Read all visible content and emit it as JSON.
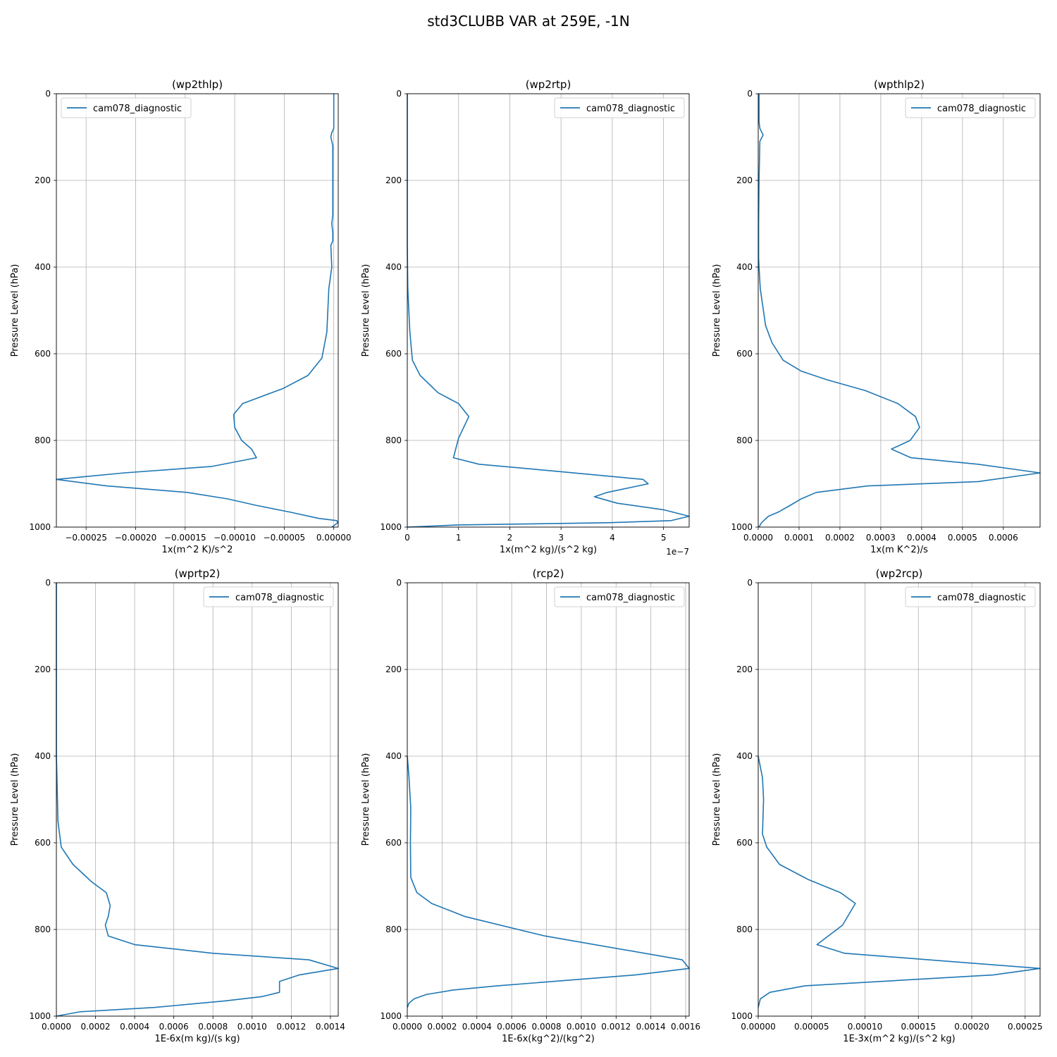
{
  "figure": {
    "title": "std3CLUBB VAR at 259E, -1N"
  },
  "chart_data": [
    {
      "type": "line",
      "title": "(wp2thlp)",
      "xlabel": "1x(m^2 K)/s^2",
      "ylabel": "Pressure Level (hPa)",
      "x_offset_label": "",
      "legend_loc": "upper left",
      "grid": true,
      "xlim": [
        -0.00028,
        4.5e-06
      ],
      "ylim": [
        1000,
        0
      ],
      "xticks": [
        -0.00025,
        -0.0002,
        -0.00015,
        -0.0001,
        -5e-05,
        0
      ],
      "xtick_labels": [
        "−0.00025",
        "−0.00020",
        "−0.00015",
        "−0.00010",
        "−0.00005",
        "0.00000"
      ],
      "yticks": [
        0,
        200,
        400,
        600,
        800,
        1000
      ],
      "ytick_labels": [
        "0",
        "200",
        "400",
        "600",
        "800",
        "1000"
      ],
      "series": [
        {
          "name": "cam078_diagnostic",
          "color": "#1f77b4",
          "x": [
            0,
            0,
            -2e-06,
            -3e-06,
            -1e-06,
            -1e-06,
            -1e-06,
            -1e-06,
            -1e-06,
            -2e-06,
            -1e-06,
            -1e-06,
            -3e-06,
            -2e-06,
            -5e-06,
            -7e-06,
            -1.2e-05,
            -2.6e-05,
            -5.1e-05,
            -9.2e-05,
            -0.000101,
            -0.0001,
            -9.3e-05,
            -8.3e-05,
            -7.8e-05,
            -0.000123,
            -0.000212,
            -0.00028,
            -0.000229,
            -0.000148,
            -0.000107,
            -7.8e-05,
            -4.5e-05,
            -1.5e-05,
            3e-06,
            4e-06,
            -2e-06
          ],
          "y": [
            0,
            80,
            90,
            100,
            120,
            150,
            200,
            250,
            280,
            300,
            320,
            340,
            350,
            400,
            450,
            550,
            610,
            650,
            680,
            715,
            740,
            770,
            800,
            820,
            840,
            860,
            875,
            890,
            905,
            920,
            935,
            950,
            965,
            980,
            985,
            990,
            1000
          ]
        }
      ]
    },
    {
      "type": "line",
      "title": "(wp2rtp)",
      "xlabel": "1x(m^2 kg)/(s^2 kg)",
      "ylabel": "Pressure Level (hPa)",
      "x_offset_label": "1e−7",
      "legend_loc": "upper right",
      "grid": true,
      "xlim": [
        0,
        5.5
      ],
      "ylim": [
        1000,
        0
      ],
      "xticks": [
        0,
        1,
        2,
        3,
        4,
        5
      ],
      "xtick_labels": [
        "0",
        "1",
        "2",
        "3",
        "4",
        "5"
      ],
      "yticks": [
        0,
        200,
        400,
        600,
        800,
        1000
      ],
      "ytick_labels": [
        "0",
        "200",
        "400",
        "600",
        "800",
        "1000"
      ],
      "series": [
        {
          "name": "cam078_diagnostic",
          "color": "#1f77b4",
          "x": [
            0,
            0,
            0.01,
            0.05,
            0.1,
            0.25,
            0.6,
            1.0,
            1.2,
            1.1,
            1.0,
            0.9,
            1.4,
            2.8,
            4.6,
            4.7,
            3.9,
            3.65,
            4.1,
            5.0,
            5.5,
            5.15,
            3.9,
            1.0,
            0
          ],
          "y": [
            0,
            350,
            450,
            550,
            615,
            650,
            690,
            715,
            745,
            770,
            795,
            840,
            855,
            870,
            890,
            900,
            920,
            930,
            945,
            960,
            975,
            985,
            990,
            995,
            1000
          ]
        }
      ]
    },
    {
      "type": "line",
      "title": "(wpthlp2)",
      "xlabel": "1x(m K^2)/s",
      "ylabel": "Pressure Level (hPa)",
      "x_offset_label": "",
      "legend_loc": "upper right",
      "grid": true,
      "xlim": [
        0,
        0.00069
      ],
      "ylim": [
        1000,
        0
      ],
      "xticks": [
        0,
        0.0001,
        0.0002,
        0.0003,
        0.0004,
        0.0005,
        0.0006
      ],
      "xtick_labels": [
        "0.0000",
        "0.0001",
        "0.0002",
        "0.0003",
        "0.0004",
        "0.0005",
        "0.0006"
      ],
      "yticks": [
        0,
        200,
        400,
        600,
        800,
        1000
      ],
      "ytick_labels": [
        "0",
        "200",
        "400",
        "600",
        "800",
        "1000"
      ],
      "series": [
        {
          "name": "cam078_diagnostic",
          "color": "#1f77b4",
          "x": [
            2e-06,
            2e-06,
            4e-06,
            1.2e-05,
            4e-06,
            2e-06,
            1e-06,
            1e-06,
            2e-06,
            5e-06,
            1.8e-05,
            2.6e-05,
            3.4e-05,
            6.1e-05,
            0.000105,
            0.000168,
            0.000262,
            0.000342,
            0.000385,
            0.000395,
            0.000372,
            0.000326,
            0.000374,
            0.000538,
            0.00069,
            0.000539,
            0.000268,
            0.000142,
            0.000105,
            7.8e-05,
            5e-05,
            2.5e-05,
            8e-06,
            2e-06
          ],
          "y": [
            0,
            65,
            80,
            95,
            110,
            200,
            300,
            380,
            400,
            450,
            535,
            555,
            575,
            615,
            640,
            660,
            685,
            715,
            745,
            770,
            800,
            820,
            840,
            855,
            875,
            895,
            905,
            920,
            935,
            950,
            965,
            975,
            990,
            1000
          ]
        }
      ]
    },
    {
      "type": "line",
      "title": "(wprtp2)",
      "xlabel": "1E-6x(m kg)/(s kg)",
      "ylabel": "Pressure Level (hPa)",
      "x_offset_label": "",
      "legend_loc": "upper right",
      "grid": true,
      "xlim": [
        0,
        0.00144
      ],
      "ylim": [
        1000,
        0
      ],
      "xticks": [
        0,
        0.0002,
        0.0004,
        0.0006,
        0.0008,
        0.001,
        0.0012,
        0.0014
      ],
      "xtick_labels": [
        "0.0000",
        "0.0002",
        "0.0004",
        "0.0006",
        "0.0008",
        "0.0010",
        "0.0012",
        "0.0014"
      ],
      "yticks": [
        0,
        200,
        400,
        600,
        800,
        1000
      ],
      "ytick_labels": [
        "0",
        "200",
        "400",
        "600",
        "800",
        "1000"
      ],
      "series": [
        {
          "name": "cam078_diagnostic",
          "color": "#1f77b4",
          "x": [
            0,
            0,
            3e-06,
            8e-06,
            2.5e-05,
            8.5e-05,
            0.00018,
            0.000255,
            0.000275,
            0.000265,
            0.00025,
            0.000265,
            0.0004,
            0.0008,
            0.00129,
            0.00144,
            0.00124,
            0.00114,
            0.00114,
            0.00105,
            0.00086,
            0.0005,
            0.00012,
            0
          ],
          "y": [
            0,
            400,
            450,
            550,
            610,
            650,
            690,
            715,
            745,
            770,
            790,
            815,
            835,
            855,
            870,
            890,
            905,
            920,
            945,
            955,
            965,
            980,
            990,
            1000
          ]
        }
      ]
    },
    {
      "type": "line",
      "title": "(rcp2)",
      "xlabel": "1E-6x(kg^2)/(kg^2)",
      "ylabel": "Pressure Level (hPa)",
      "x_offset_label": "",
      "legend_loc": "upper right",
      "grid": true,
      "xlim": [
        0,
        0.00162
      ],
      "ylim": [
        1000,
        0
      ],
      "xticks": [
        0,
        0.0002,
        0.0004,
        0.0006,
        0.0008,
        0.001,
        0.0012,
        0.0014,
        0.0016
      ],
      "xtick_labels": [
        "0.0000",
        "0.0002",
        "0.0004",
        "0.0006",
        "0.0008",
        "0.0010",
        "0.0012",
        "0.0014",
        "0.0016"
      ],
      "yticks": [
        0,
        200,
        400,
        600,
        800,
        1000
      ],
      "ytick_labels": [
        "0",
        "200",
        "400",
        "600",
        "800",
        "1000"
      ],
      "series": [
        {
          "name": "cam078_diagnostic",
          "color": "#1f77b4",
          "x": [
            0,
            1e-05,
            2e-05,
            1.8e-05,
            2e-05,
            5.5e-05,
            0.00014,
            0.00033,
            0.00079,
            0.00158,
            0.00162,
            0.00131,
            0.00052,
            0.00026,
            0.00011,
            4e-05,
            1e-05,
            0
          ],
          "y": [
            400,
            450,
            520,
            600,
            680,
            715,
            740,
            770,
            815,
            870,
            890,
            905,
            930,
            940,
            950,
            960,
            970,
            980
          ]
        }
      ]
    },
    {
      "type": "line",
      "title": "(wp2rcp)",
      "xlabel": "1E-3x(m^2 kg)/(s^2 kg)",
      "ylabel": "Pressure Level (hPa)",
      "x_offset_label": "",
      "legend_loc": "upper right",
      "grid": true,
      "xlim": [
        0,
        0.000264
      ],
      "ylim": [
        1000,
        0
      ],
      "xticks": [
        0,
        5e-05,
        0.0001,
        0.00015,
        0.0002,
        0.00025
      ],
      "xtick_labels": [
        "0.00000",
        "0.00005",
        "0.00010",
        "0.00015",
        "0.00020",
        "0.00025"
      ],
      "yticks": [
        0,
        200,
        400,
        600,
        800,
        1000
      ],
      "ytick_labels": [
        "0",
        "200",
        "400",
        "600",
        "800",
        "1000"
      ],
      "series": [
        {
          "name": "cam078_diagnostic",
          "color": "#1f77b4",
          "x": [
            0,
            4e-06,
            5e-06,
            4e-06,
            8e-06,
            2e-05,
            4.7e-05,
            7.7e-05,
            9.1e-05,
            7.9e-05,
            5.5e-05,
            8.1e-05,
            0.000264,
            0.00022,
            4.4e-05,
            1.1e-05,
            2e-06,
            0
          ],
          "y": [
            400,
            450,
            500,
            580,
            610,
            650,
            685,
            715,
            740,
            790,
            835,
            855,
            890,
            905,
            930,
            945,
            960,
            980
          ]
        }
      ]
    }
  ]
}
